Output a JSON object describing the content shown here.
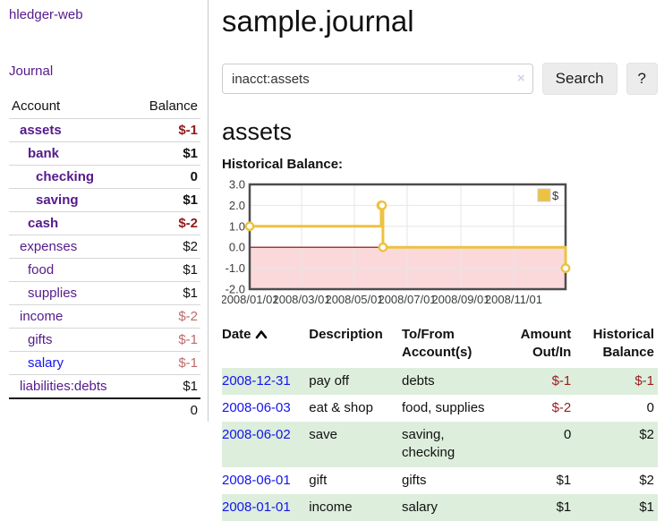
{
  "app": {
    "title": "hledger-web"
  },
  "colors": {
    "link_visited": "#551A8B",
    "link_unvisited": "#1414EE",
    "negative_dark": "#8e1b1b",
    "negative_light": "#bf6a6a",
    "stripe_green": "#ddeedd",
    "series_gold": "#edc240"
  },
  "sidebar": {
    "journal_link": "Journal",
    "accounts_header": {
      "account": "Account",
      "balance": "Balance"
    },
    "accounts": [
      {
        "name": "assets",
        "indent": 0,
        "bold": true,
        "unvisited": false,
        "balance": "$-1",
        "negative": "dark"
      },
      {
        "name": "bank",
        "indent": 1,
        "bold": true,
        "unvisited": false,
        "balance": "$1",
        "negative": "none"
      },
      {
        "name": "checking",
        "indent": 2,
        "bold": true,
        "unvisited": false,
        "balance": "0",
        "negative": "none"
      },
      {
        "name": "saving",
        "indent": 2,
        "bold": true,
        "unvisited": false,
        "balance": "$1",
        "negative": "none"
      },
      {
        "name": "cash",
        "indent": 1,
        "bold": true,
        "unvisited": false,
        "balance": "$-2",
        "negative": "dark"
      },
      {
        "name": "expenses",
        "indent": 0,
        "bold": false,
        "unvisited": false,
        "balance": "$2",
        "negative": "none"
      },
      {
        "name": "food",
        "indent": 1,
        "bold": false,
        "unvisited": false,
        "balance": "$1",
        "negative": "none"
      },
      {
        "name": "supplies",
        "indent": 1,
        "bold": false,
        "unvisited": false,
        "balance": "$1",
        "negative": "none"
      },
      {
        "name": "income",
        "indent": 0,
        "bold": false,
        "unvisited": false,
        "balance": "$-2",
        "negative": "light"
      },
      {
        "name": "gifts",
        "indent": 1,
        "bold": false,
        "unvisited": false,
        "balance": "$-1",
        "negative": "light"
      },
      {
        "name": "salary",
        "indent": 1,
        "bold": false,
        "unvisited": true,
        "balance": "$-1",
        "negative": "light"
      },
      {
        "name": "liabilities:debts",
        "indent": 0,
        "bold": false,
        "unvisited": false,
        "balance": "$1",
        "negative": "none"
      }
    ],
    "total": "0"
  },
  "main": {
    "title": "sample.journal",
    "search": {
      "value": "inacct:assets",
      "clear_label": "×",
      "button_label": "Search",
      "help_label": "?"
    },
    "account_heading": "assets",
    "chart_label": "Historical Balance:"
  },
  "chart_data": {
    "type": "line",
    "step": true,
    "series": [
      {
        "name": "$",
        "color": "#edc240",
        "points": [
          [
            "2008-01-01",
            1
          ],
          [
            "2008-06-01",
            2
          ],
          [
            "2008-06-02",
            2
          ],
          [
            "2008-06-03",
            0
          ],
          [
            "2008-12-31",
            -1
          ]
        ]
      }
    ],
    "x_ticks": [
      "2008/01/01",
      "2008/03/01",
      "2008/05/01",
      "2008/07/01",
      "2008/09/01",
      "2008/11/01"
    ],
    "y_ticks": [
      "3.0",
      "2.0",
      "1.0",
      "0.0",
      "-1.0",
      "-2.0"
    ],
    "ylim": [
      -2,
      3
    ],
    "xlim": [
      "2008-01-01",
      "2008-12-31"
    ],
    "grid": true,
    "legend": {
      "label": "$",
      "position": "top-right"
    },
    "negative_region_color": "#fbd9db",
    "zero_line_color": "#8b0000"
  },
  "register": {
    "columns": [
      {
        "l1": "Date",
        "l2": "",
        "sorted": true
      },
      {
        "l1": "Description",
        "l2": ""
      },
      {
        "l1": "To/From",
        "l2": "Account(s)"
      },
      {
        "l1": "Amount",
        "l2": "Out/In"
      },
      {
        "l1": "Historical",
        "l2": "Balance"
      }
    ],
    "rows": [
      {
        "date": "2008-12-31",
        "description": "pay off",
        "accounts": "debts",
        "amount": "$-1",
        "balance": "$-1"
      },
      {
        "date": "2008-06-03",
        "description": "eat & shop",
        "accounts": "food, supplies",
        "amount": "$-2",
        "balance": "0"
      },
      {
        "date": "2008-06-02",
        "description": "save",
        "accounts": "saving, checking",
        "amount": "0",
        "balance": "$2"
      },
      {
        "date": "2008-06-01",
        "description": "gift",
        "accounts": "gifts",
        "amount": "$1",
        "balance": "$2"
      },
      {
        "date": "2008-01-01",
        "description": "income",
        "accounts": "salary",
        "amount": "$1",
        "balance": "$1"
      }
    ]
  }
}
